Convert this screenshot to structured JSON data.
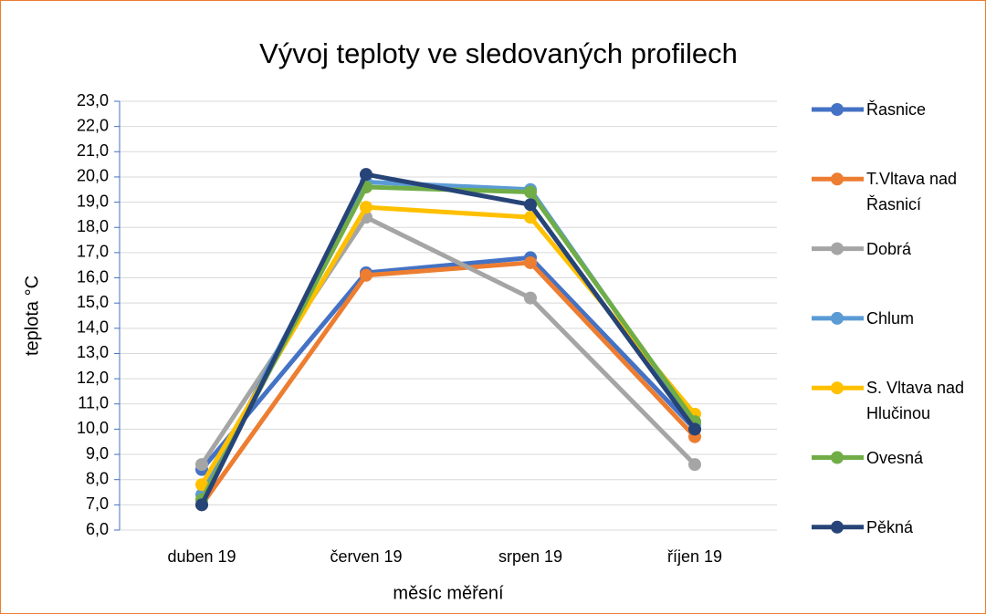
{
  "chart_data": {
    "type": "line",
    "title": "Vývoj teploty ve sledovaných profilech",
    "xlabel": "měsíc měření",
    "ylabel": "teplota °C",
    "categories": [
      "duben 19",
      "červen 19",
      "srpen 19",
      "říjen 19"
    ],
    "ylim": [
      6,
      23
    ],
    "yticks": [
      {
        "value": 6,
        "label": "6,0"
      },
      {
        "value": 7,
        "label": "7,0"
      },
      {
        "value": 8,
        "label": "8,0"
      },
      {
        "value": 9,
        "label": "9,0"
      },
      {
        "value": 10,
        "label": "10,0"
      },
      {
        "value": 11,
        "label": "11,0"
      },
      {
        "value": 12,
        "label": "12,0"
      },
      {
        "value": 13,
        "label": "13,0"
      },
      {
        "value": 14,
        "label": "14,0"
      },
      {
        "value": 15,
        "label": "15,0"
      },
      {
        "value": 16,
        "label": "16,0"
      },
      {
        "value": 17,
        "label": "17,0"
      },
      {
        "value": 18,
        "label": "18,0"
      },
      {
        "value": 19,
        "label": "19,0"
      },
      {
        "value": 20,
        "label": "20,0"
      },
      {
        "value": 21,
        "label": "21,0"
      },
      {
        "value": 22,
        "label": "22,0"
      },
      {
        "value": 23,
        "label": "23,0"
      }
    ],
    "grid": true,
    "legend": "right",
    "series": [
      {
        "name": "Řasnice",
        "color": "#4472c4",
        "values": [
          8.4,
          16.2,
          16.8,
          10.0
        ]
      },
      {
        "name": "T.Vltava nad Řasnicí",
        "color": "#ed7d31",
        "values": [
          7.0,
          16.1,
          16.6,
          9.7
        ]
      },
      {
        "name": "Dobrá",
        "color": "#a5a5a5",
        "values": [
          8.6,
          18.4,
          15.2,
          8.6
        ]
      },
      {
        "name": "Chlum",
        "color": "#5b9bd5",
        "values": [
          7.4,
          19.8,
          19.5,
          10.2
        ]
      },
      {
        "name": "S. Vltava nad Hlučinou",
        "color": "#ffc000",
        "values": [
          7.8,
          18.8,
          18.4,
          10.6
        ]
      },
      {
        "name": "Ovesná",
        "color": "#70ad47",
        "values": [
          7.2,
          19.6,
          19.4,
          10.3
        ]
      },
      {
        "name": "Pěkná",
        "color": "#264478",
        "values": [
          7.0,
          20.1,
          18.9,
          10.0
        ]
      }
    ]
  }
}
